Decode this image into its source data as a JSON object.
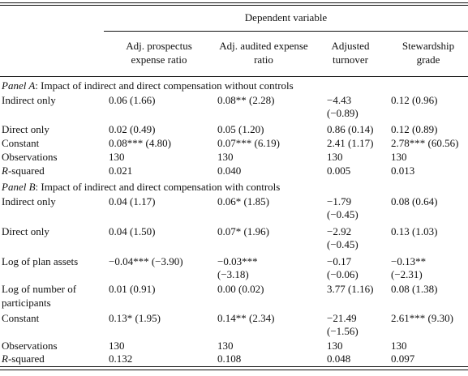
{
  "header": {
    "dependent_variable": "Dependent variable",
    "columns": [
      "Adj. prospectus expense ratio",
      "Adj. audited expense ratio",
      "Adjusted turnover",
      "Stewardship grade"
    ]
  },
  "panel_a": {
    "label_italic": "Panel A",
    "label_rest": ": Impact of indirect and direct compensation without controls",
    "rows": [
      {
        "label": "Indirect only",
        "c1": "0.06 (1.66)",
        "c2": "0.08** (2.28)",
        "c3a": "−4.43",
        "c3b": "(−0.89)",
        "c4": "0.12 (0.96)"
      },
      {
        "label": "Direct only",
        "c1": "0.02 (0.49)",
        "c2": "0.05 (1.20)",
        "c3a": "0.86 (0.14)",
        "c3b": "",
        "c4": "0.12 (0.89)"
      },
      {
        "label": "Constant",
        "c1": "0.08*** (4.80)",
        "c2": "0.07*** (6.19)",
        "c3a": "2.41 (1.17)",
        "c3b": "",
        "c4": "2.78*** (60.56)"
      },
      {
        "label": "Observations",
        "c1": "130",
        "c2": "130",
        "c3a": "130",
        "c3b": "",
        "c4": "130"
      },
      {
        "label_italic": "R",
        "label_rest": "-squared",
        "c1": "0.021",
        "c2": "0.040",
        "c3a": "0.005",
        "c3b": "",
        "c4": "0.013"
      }
    ]
  },
  "panel_b": {
    "label_italic": "Panel B",
    "label_rest": ": Impact of indirect and direct compensation with controls",
    "rows": [
      {
        "label": "Indirect only",
        "c1": "0.04 (1.17)",
        "c2a": "0.06* (1.85)",
        "c2b": "",
        "c3a": "−1.79",
        "c3b": "(−0.45)",
        "c4a": "0.08 (0.64)",
        "c4b": ""
      },
      {
        "label": "Direct only",
        "c1": "0.04 (1.50)",
        "c2a": "0.07* (1.96)",
        "c2b": "",
        "c3a": "−2.92",
        "c3b": "(−0.45)",
        "c4a": "0.13 (1.03)",
        "c4b": ""
      },
      {
        "label": "Log of plan assets",
        "c1": "−0.04*** (−3.90)",
        "c2a": "−0.03***",
        "c2b": "(−3.18)",
        "c3a": "−0.17",
        "c3b": "(−0.06)",
        "c4a": "−0.13**",
        "c4b": "(−2.31)"
      },
      {
        "label": "Log of number of participants",
        "c1": "0.01 (0.91)",
        "c2a": "0.00 (0.02)",
        "c2b": "",
        "c3a": "3.77 (1.16)",
        "c3b": "",
        "c4a": "0.08 (1.38)",
        "c4b": ""
      },
      {
        "label": "Constant",
        "c1": "0.13* (1.95)",
        "c2a": "0.14** (2.34)",
        "c2b": "",
        "c3a": "−21.49",
        "c3b": "(−1.56)",
        "c4a": "2.61*** (9.30)",
        "c4b": ""
      },
      {
        "label": "Observations",
        "c1": "130",
        "c2a": "130",
        "c2b": "",
        "c3a": "130",
        "c3b": "",
        "c4a": "130",
        "c4b": ""
      },
      {
        "label_italic": "R",
        "label_rest": "-squared",
        "c1": "0.132",
        "c2a": "0.108",
        "c2b": "",
        "c3a": "0.048",
        "c3b": "",
        "c4a": "0.097",
        "c4b": ""
      }
    ]
  }
}
